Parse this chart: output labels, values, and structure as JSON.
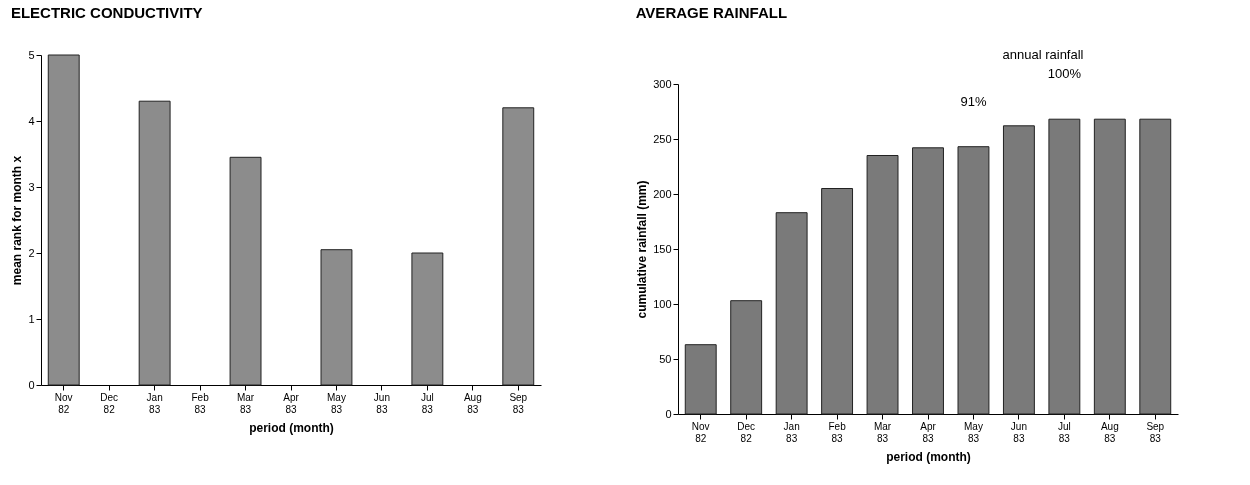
{
  "chart_data": [
    {
      "type": "bar",
      "title": "ELECTRIC CONDUCTIVITY",
      "xlabel": "period (month)",
      "ylabel": "mean rank for month x",
      "categories": [
        "Nov 82",
        "Dec 82",
        "Jan 83",
        "Feb 83",
        "Mar 83",
        "Apr 83",
        "May 83",
        "Jun 83",
        "Jul 83",
        "Aug 83",
        "Sep 83"
      ],
      "values": [
        5.0,
        null,
        4.3,
        null,
        3.45,
        null,
        2.05,
        null,
        2.0,
        null,
        4.2
      ],
      "color": "#8c8c8c",
      "ylim": [
        0,
        5
      ],
      "yticks": [
        0,
        1,
        2,
        3,
        4,
        5
      ],
      "grid": false
    },
    {
      "type": "bar",
      "title": "AVERAGE RAINFALL",
      "xlabel": "period (month)",
      "ylabel": "cumulative rainfall (mm)",
      "categories": [
        "Nov 82",
        "Dec 82",
        "Jan 83",
        "Feb 83",
        "Mar 83",
        "Apr 83",
        "May 83",
        "Jun 83",
        "Jul 83",
        "Aug 83",
        "Sep 83"
      ],
      "values": [
        63,
        103,
        183,
        205,
        235,
        242,
        243,
        262,
        268,
        268,
        268
      ],
      "color": "#7a7a7a",
      "ylim": [
        0,
        300
      ],
      "yticks": [
        0,
        50,
        100,
        150,
        200,
        250,
        300
      ],
      "grid": false,
      "annotations": [
        "annual rainfall",
        {
          "text": "91%",
          "x": "May 83",
          "y": 243
        },
        {
          "text": "100%",
          "x": "Jul 83",
          "y": 268
        }
      ]
    }
  ]
}
